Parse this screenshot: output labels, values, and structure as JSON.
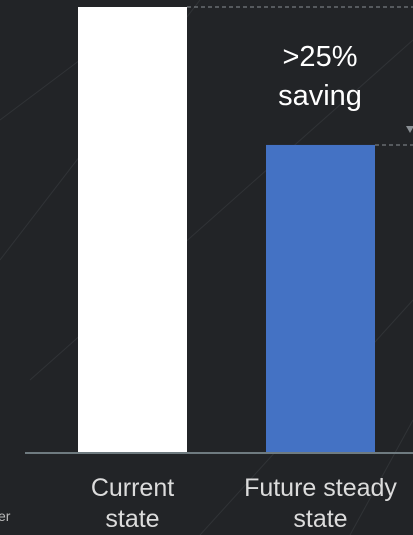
{
  "chart_data": {
    "type": "bar",
    "categories": [
      "Current state",
      "Future steady state"
    ],
    "values": [
      100,
      69
    ],
    "colors": [
      "#ffffff",
      "#4472c4"
    ],
    "ylim": [
      0,
      100
    ],
    "annotation": [
      ">25%",
      "saving"
    ],
    "side_text": "er"
  }
}
